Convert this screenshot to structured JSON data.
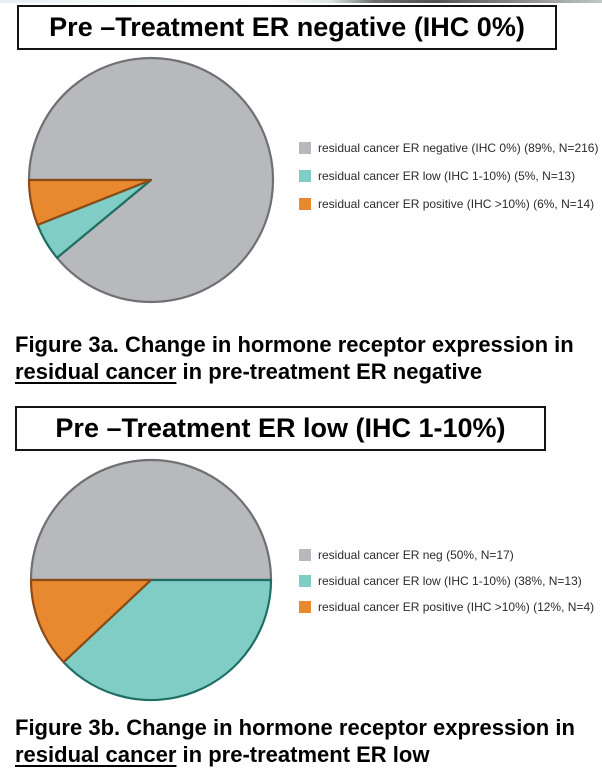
{
  "colors": {
    "background": "#ffffff",
    "title_border": "#141414",
    "text": "#000000",
    "legend_text": "#2b2b2b",
    "gray_fill": "#b7b9bc",
    "gray_stroke": "#6f7073",
    "teal_fill": "#7fcdc5",
    "teal_stroke": "#1f6e64",
    "orange_fill": "#e8882f",
    "orange_stroke": "#8c4a17"
  },
  "figures": [
    {
      "id": "3a",
      "title": "Pre –Treatment ER negative (IHC 0%)",
      "caption": {
        "line1": "Figure 3a. Change in hormone receptor expression in",
        "underlined": "residual cancer",
        "suffix": " in pre-treatment ER negative"
      }
    },
    {
      "id": "3b",
      "title": "Pre –Treatment ER low (IHC 1-10%)",
      "caption": {
        "line1": "Figure 3b. Change in hormone receptor expression in",
        "underlined": "residual cancer",
        "suffix": " in pre-treatment ER low"
      }
    }
  ],
  "chart_data": [
    {
      "type": "pie",
      "title": "Pre –Treatment ER negative (IHC 0%)",
      "start_angle_deg": 180,
      "direction": "clockwise",
      "legend_position": "right",
      "slices": [
        {
          "label": "residual cancer ER negative (IHC 0%)",
          "pct": 89,
          "n": 216,
          "color": "#b7b9bc",
          "stroke": "#6f7073",
          "legend_label": "residual cancer ER negative (IHC 0%) (89%, N=216)"
        },
        {
          "label": "residual cancer ER low (IHC 1-10%)",
          "pct": 5,
          "n": 13,
          "color": "#7fcdc5",
          "stroke": "#1f6e64",
          "legend_label": "residual cancer ER low (IHC 1-10%) (5%, N=13)"
        },
        {
          "label": "residual cancer ER positive (IHC >10%)",
          "pct": 6,
          "n": 14,
          "color": "#e8882f",
          "stroke": "#8c4a17",
          "legend_label": "residual cancer ER positive (IHC >10%) (6%, N=14)"
        }
      ]
    },
    {
      "type": "pie",
      "title": "Pre –Treatment ER low (IHC 1-10%)",
      "start_angle_deg": 180,
      "direction": "clockwise",
      "legend_position": "right",
      "slices": [
        {
          "label": "residual cancer ER neg",
          "pct": 50,
          "n": 17,
          "color": "#b7b9bc",
          "stroke": "#6f7073",
          "legend_label": "residual cancer ER neg (50%, N=17)"
        },
        {
          "label": "residual cancer ER low (IHC 1-10%)",
          "pct": 38,
          "n": 13,
          "color": "#7fcdc5",
          "stroke": "#1f6e64",
          "legend_label": "residual cancer ER low (IHC 1-10%) (38%, N=13)"
        },
        {
          "label": "residual cancer ER positive (IHC >10%)",
          "pct": 12,
          "n": 4,
          "color": "#e8882f",
          "stroke": "#8c4a17",
          "legend_label": "residual cancer ER positive (IHC >10%) (12%, N=4)"
        }
      ]
    }
  ]
}
